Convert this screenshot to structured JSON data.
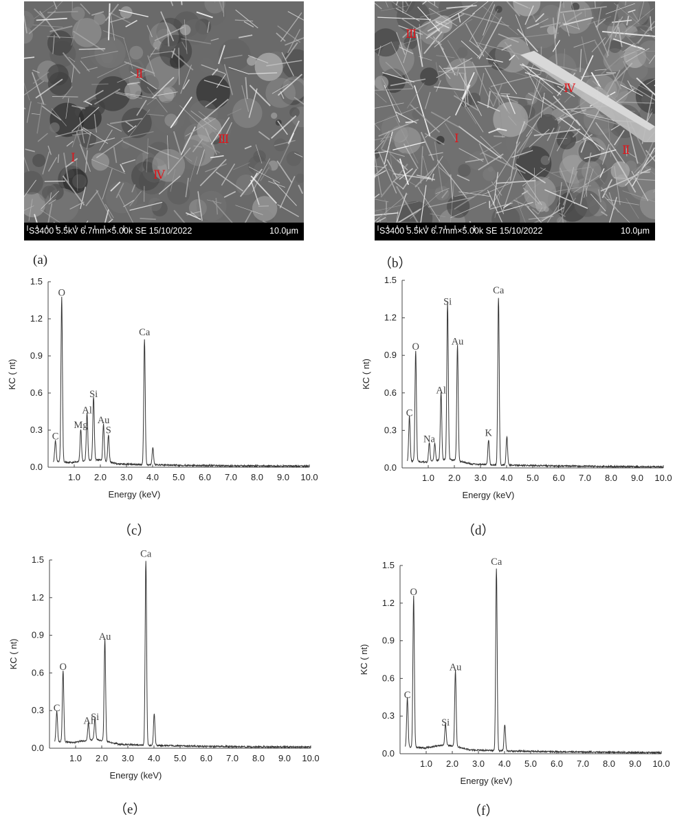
{
  "sem_images": [
    {
      "id": "a",
      "label": "(a)",
      "info": "S3400 5.5kV 6.7mm×5.00k SE 15/10/2022",
      "scale": "10.0μm",
      "markers": [
        {
          "text": "Ⅱ",
          "pos": "upper-middle"
        },
        {
          "text": "Ⅲ",
          "pos": "middle-right"
        },
        {
          "text": "Ⅰ",
          "pos": "lower-left"
        },
        {
          "text": "Ⅳ",
          "pos": "lower-middle"
        }
      ]
    },
    {
      "id": "b",
      "label": "（b）",
      "info": "S3400 5.5kV 6.7mm×5.00k SE 15/10/2022",
      "scale": "10.0μm",
      "markers": [
        {
          "text": "Ⅲ",
          "pos": "top-left"
        },
        {
          "text": "Ⅳ",
          "pos": "upper-right"
        },
        {
          "text": "Ⅰ",
          "pos": "middle-left"
        },
        {
          "text": "Ⅱ",
          "pos": "middle-right"
        }
      ]
    }
  ],
  "chart_data": [
    {
      "id": "c",
      "label": "（c）",
      "type": "line",
      "title": "",
      "xlabel": "Energy (keV)",
      "ylabel": "KC ( nt)",
      "xlim": [
        0,
        10.0
      ],
      "ylim": [
        0,
        1.5
      ],
      "xticks": [
        "1.0",
        "2.0",
        "3.0",
        "4.0",
        "5.0",
        "6.0",
        "7.0",
        "8.0",
        "9.0",
        "10.0"
      ],
      "yticks": [
        "0.0",
        "0.3",
        "0.6",
        "0.9",
        "1.2",
        "1.5"
      ],
      "baseline": 0.04,
      "peaks": [
        {
          "x": 0.28,
          "y": 0.17,
          "label": "C"
        },
        {
          "x": 0.52,
          "y": 1.33,
          "label": "O"
        },
        {
          "x": 1.25,
          "y": 0.26,
          "label": "Mg"
        },
        {
          "x": 1.49,
          "y": 0.38,
          "label": "Al"
        },
        {
          "x": 1.74,
          "y": 0.51,
          "label": "Si"
        },
        {
          "x": 2.12,
          "y": 0.3,
          "label": "Au"
        },
        {
          "x": 2.31,
          "y": 0.22,
          "label": "S"
        },
        {
          "x": 3.69,
          "y": 1.01,
          "label": "Ca"
        },
        {
          "x": 4.01,
          "y": 0.14,
          "label": ""
        }
      ]
    },
    {
      "id": "d",
      "label": "（d）",
      "type": "line",
      "title": "",
      "xlabel": "Energy (keV)",
      "ylabel": "KC ( nt)",
      "xlim": [
        0,
        10.0
      ],
      "ylim": [
        0,
        1.5
      ],
      "xticks": [
        "1.0",
        "2.0",
        "3.0",
        "4.0",
        "5.0",
        "6.0",
        "7.0",
        "8.0",
        "9.0",
        "10.0"
      ],
      "yticks": [
        "0.0",
        "0.3",
        "0.6",
        "0.9",
        "1.2",
        "1.5"
      ],
      "baseline": 0.05,
      "peaks": [
        {
          "x": 0.28,
          "y": 0.36,
          "label": "C"
        },
        {
          "x": 0.52,
          "y": 0.89,
          "label": "O"
        },
        {
          "x": 1.04,
          "y": 0.15,
          "label": "Na"
        },
        {
          "x": 1.25,
          "y": 0.14,
          "label": ""
        },
        {
          "x": 1.49,
          "y": 0.54,
          "label": "Al"
        },
        {
          "x": 1.74,
          "y": 1.25,
          "label": "Si"
        },
        {
          "x": 2.12,
          "y": 0.93,
          "label": "Au"
        },
        {
          "x": 3.31,
          "y": 0.2,
          "label": "K"
        },
        {
          "x": 3.69,
          "y": 1.34,
          "label": "Ca"
        },
        {
          "x": 4.01,
          "y": 0.23,
          "label": ""
        }
      ]
    },
    {
      "id": "e",
      "label": "（e）",
      "type": "line",
      "title": "",
      "xlabel": "Energy (keV)",
      "ylabel": "KC ( nt)",
      "xlim": [
        0,
        10.0
      ],
      "ylim": [
        0,
        1.5
      ],
      "xticks": [
        "1.0",
        "2.0",
        "3.0",
        "4.0",
        "5.0",
        "6.0",
        "7.0",
        "8.0",
        "9.0",
        "10.0"
      ],
      "yticks": [
        "0.0",
        "0.3",
        "0.6",
        "0.9",
        "1.2",
        "1.5"
      ],
      "baseline": 0.05,
      "peaks": [
        {
          "x": 0.28,
          "y": 0.24,
          "label": "C"
        },
        {
          "x": 0.52,
          "y": 0.57,
          "label": "O"
        },
        {
          "x": 1.49,
          "y": 0.14,
          "label": "Al"
        },
        {
          "x": 1.74,
          "y": 0.17,
          "label": "Si"
        },
        {
          "x": 2.12,
          "y": 0.81,
          "label": "Au"
        },
        {
          "x": 3.69,
          "y": 1.47,
          "label": "Ca"
        },
        {
          "x": 4.01,
          "y": 0.25,
          "label": ""
        }
      ]
    },
    {
      "id": "f",
      "label": "（f）",
      "type": "line",
      "title": "",
      "xlabel": "Energy (keV)",
      "ylabel": "KC ( nt)",
      "xlim": [
        0,
        10.0
      ],
      "ylim": [
        0,
        1.5
      ],
      "xticks": [
        "1.0",
        "2.0",
        "3.0",
        "4.0",
        "5.0",
        "6.0",
        "7.0",
        "8.0",
        "9.0",
        "10.0"
      ],
      "yticks": [
        "0.0",
        "0.3",
        "0.6",
        "0.9",
        "1.2",
        "1.5"
      ],
      "baseline": 0.05,
      "peaks": [
        {
          "x": 0.28,
          "y": 0.39,
          "label": "C"
        },
        {
          "x": 0.52,
          "y": 1.21,
          "label": "O"
        },
        {
          "x": 1.74,
          "y": 0.17,
          "label": "Si"
        },
        {
          "x": 2.12,
          "y": 0.61,
          "label": "Au"
        },
        {
          "x": 3.69,
          "y": 1.45,
          "label": "Ca"
        },
        {
          "x": 4.01,
          "y": 0.21,
          "label": ""
        }
      ]
    }
  ]
}
